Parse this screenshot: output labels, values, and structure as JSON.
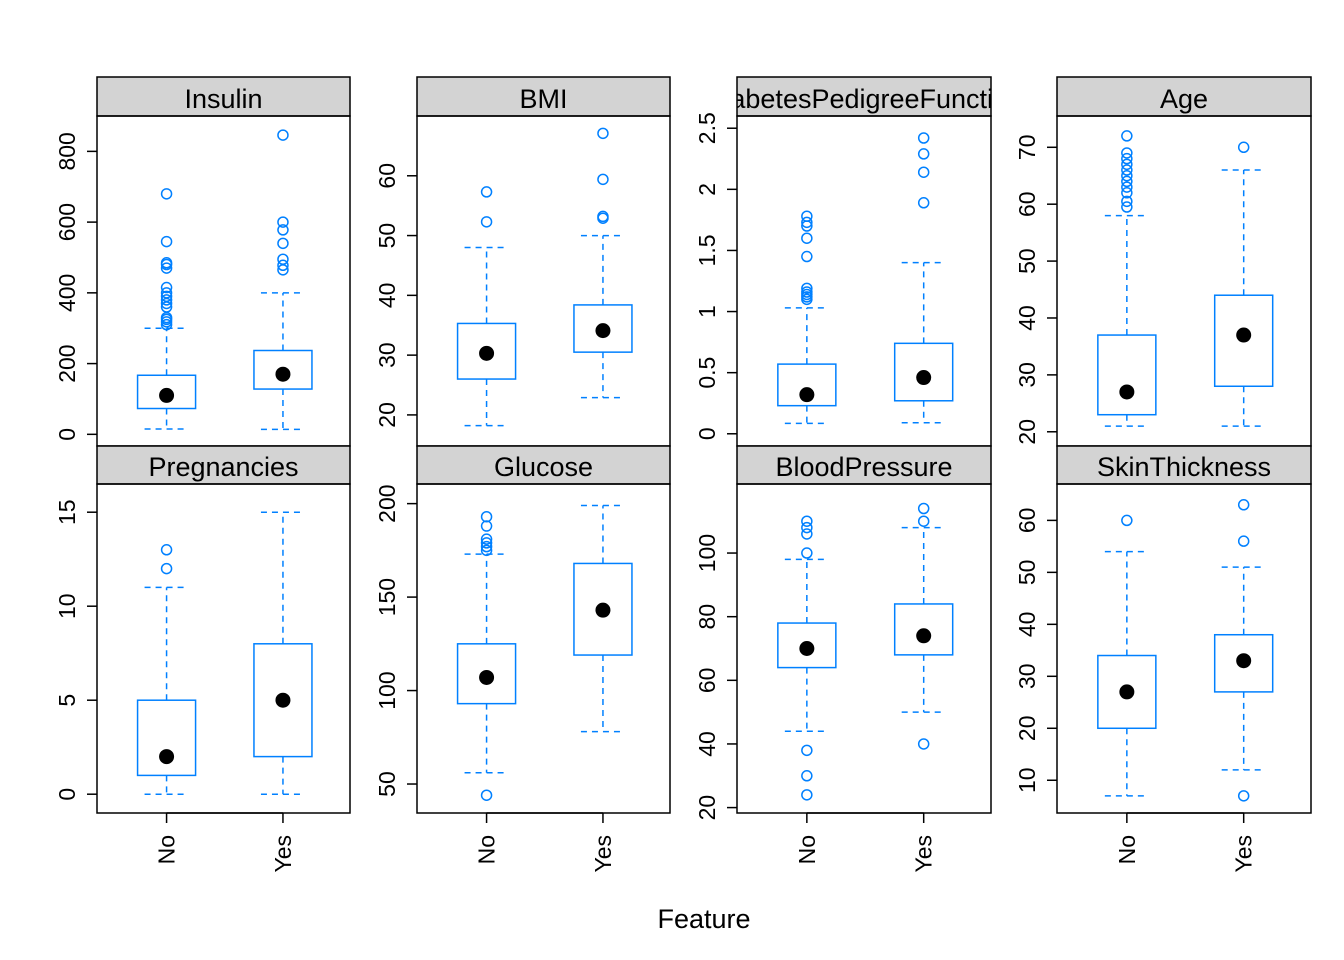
{
  "chart_data": {
    "type": "box",
    "xlabel": "Feature",
    "groups": [
      "No",
      "Yes"
    ],
    "colors": {
      "box": "#0080ff",
      "median_dot": "#000000",
      "strip_bg": "#d3d3d3",
      "frame": "#000000"
    },
    "panels": [
      {
        "name": "Insulin",
        "yticks": [
          0,
          200,
          400,
          600,
          800
        ],
        "ylim": [
          -33,
          900
        ],
        "boxes": [
          {
            "group": "No",
            "whisker_low": 15,
            "q1": 73,
            "median": 110,
            "q3": 167,
            "whisker_high": 300,
            "outliers": [
              310,
              318,
              325,
              330,
              360,
              370,
              380,
              390,
              400,
              415,
              470,
              480,
              485,
              545,
              680
            ]
          },
          {
            "group": "Yes",
            "whisker_low": 14,
            "q1": 128,
            "median": 170,
            "q3": 237,
            "whisker_high": 400,
            "outliers": [
              465,
              478,
              495,
              540,
              578,
              600,
              846
            ]
          }
        ]
      },
      {
        "name": "BMI",
        "yticks": [
          20,
          30,
          40,
          50,
          60
        ],
        "ylim": [
          14.8,
          70.0
        ],
        "boxes": [
          {
            "group": "No",
            "whisker_low": 18.2,
            "q1": 26,
            "median": 30.3,
            "q3": 35.3,
            "whisker_high": 48,
            "outliers": [
              52.3,
              57.3
            ]
          },
          {
            "group": "Yes",
            "whisker_low": 22.9,
            "q1": 30.5,
            "median": 34.1,
            "q3": 38.4,
            "whisker_high": 50,
            "outliers": [
              52.9,
              53.2,
              59.4,
              67.1
            ]
          }
        ]
      },
      {
        "name": "DiabetesPedigreeFunction",
        "yticks": [
          0.0,
          0.5,
          1.0,
          1.5,
          2.0,
          2.5
        ],
        "ylim": [
          -0.1,
          2.6
        ],
        "boxes": [
          {
            "group": "No",
            "whisker_low": 0.085,
            "q1": 0.23,
            "median": 0.32,
            "q3": 0.57,
            "whisker_high": 1.03,
            "outliers": [
              1.1,
              1.12,
              1.14,
              1.16,
              1.19,
              1.45,
              1.6,
              1.7,
              1.73,
              1.78
            ]
          },
          {
            "group": "Yes",
            "whisker_low": 0.09,
            "q1": 0.27,
            "median": 0.46,
            "q3": 0.74,
            "whisker_high": 1.4,
            "outliers": [
              1.89,
              2.14,
              2.29,
              2.42
            ]
          }
        ]
      },
      {
        "name": "Age",
        "yticks": [
          20,
          30,
          40,
          50,
          60,
          70
        ],
        "ylim": [
          17.5,
          75.5
        ],
        "boxes": [
          {
            "group": "No",
            "whisker_low": 21,
            "q1": 23,
            "median": 27,
            "q3": 37,
            "whisker_high": 58,
            "outliers": [
              59.5,
              60.5,
              62,
              63,
              64,
              65,
              66,
              67,
              68,
              69,
              72
            ]
          },
          {
            "group": "Yes",
            "whisker_low": 21,
            "q1": 28,
            "median": 37,
            "q3": 44,
            "whisker_high": 66,
            "outliers": [
              70
            ]
          }
        ]
      },
      {
        "name": "Pregnancies",
        "yticks": [
          0,
          5,
          10,
          15
        ],
        "ylim": [
          -1,
          16.5
        ],
        "boxes": [
          {
            "group": "No",
            "whisker_low": 0,
            "q1": 1,
            "median": 2,
            "q3": 5,
            "whisker_high": 11,
            "outliers": [
              12,
              13
            ]
          },
          {
            "group": "Yes",
            "whisker_low": 0,
            "q1": 2,
            "median": 5,
            "q3": 8,
            "whisker_high": 15,
            "outliers": []
          }
        ]
      },
      {
        "name": "Glucose",
        "yticks": [
          50,
          100,
          150,
          200
        ],
        "ylim": [
          34.5,
          210.5
        ],
        "boxes": [
          {
            "group": "No",
            "whisker_low": 56,
            "q1": 93,
            "median": 107,
            "q3": 125,
            "whisker_high": 173,
            "outliers": [
              44,
              175,
              177,
              179,
              181,
              188,
              193
            ]
          },
          {
            "group": "Yes",
            "whisker_low": 78,
            "q1": 119,
            "median": 143,
            "q3": 168,
            "whisker_high": 199,
            "outliers": []
          }
        ]
      },
      {
        "name": "BloodPressure",
        "yticks": [
          20,
          40,
          60,
          80,
          100
        ],
        "ylim": [
          18.3,
          121.7
        ],
        "boxes": [
          {
            "group": "No",
            "whisker_low": 44,
            "q1": 64,
            "median": 70,
            "q3": 78,
            "whisker_high": 98,
            "outliers": [
              24,
              30,
              38,
              100,
              106,
              108,
              110
            ]
          },
          {
            "group": "Yes",
            "whisker_low": 50,
            "q1": 68,
            "median": 74,
            "q3": 84,
            "whisker_high": 108,
            "outliers": [
              40,
              110,
              114
            ]
          }
        ]
      },
      {
        "name": "SkinThickness",
        "yticks": [
          10,
          20,
          30,
          40,
          50,
          60
        ],
        "ylim": [
          3.7,
          67.0
        ],
        "boxes": [
          {
            "group": "No",
            "whisker_low": 7,
            "q1": 20,
            "median": 27,
            "q3": 34,
            "whisker_high": 54,
            "outliers": [
              60
            ]
          },
          {
            "group": "Yes",
            "whisker_low": 12,
            "q1": 27,
            "median": 33,
            "q3": 38,
            "whisker_high": 51,
            "outliers": [
              7,
              56,
              63
            ]
          }
        ]
      }
    ]
  }
}
